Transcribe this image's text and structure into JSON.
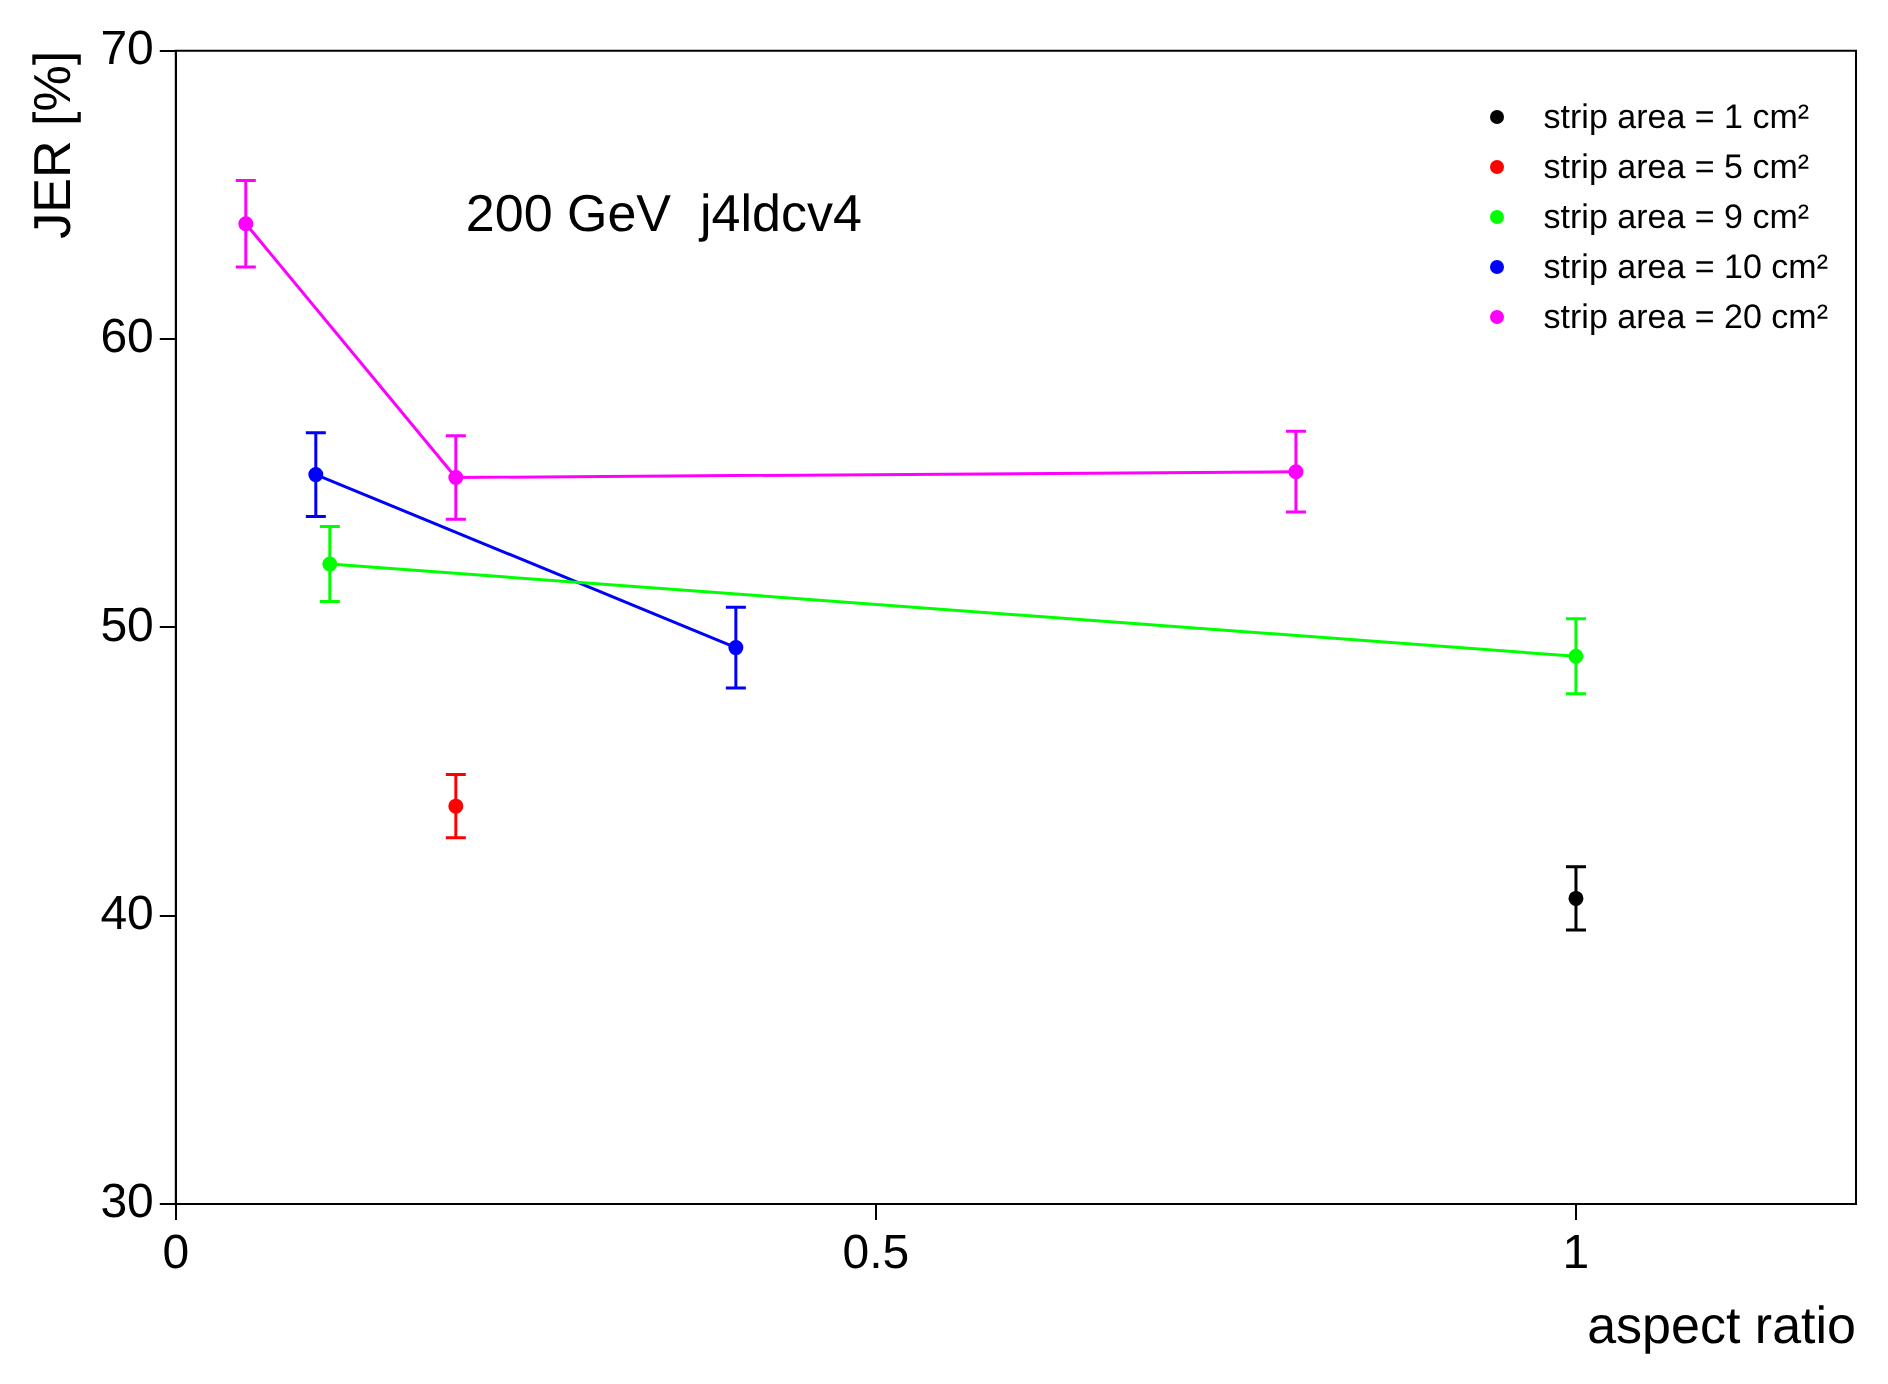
{
  "chart_data": {
    "type": "line",
    "xlabel": "aspect ratio",
    "ylabel": "JER [%]",
    "xlim": [
      0,
      1.2
    ],
    "xticks": [
      0,
      0.5,
      1
    ],
    "ylim": [
      30,
      70
    ],
    "yticks": [
      30,
      40,
      50,
      60,
      70
    ],
    "grid": false,
    "legend": "top right",
    "marker": "circle",
    "annotations": [
      "200 GeV  j4ldcv4"
    ],
    "series": [
      {
        "name": "strip area = 1 cm²",
        "type": "scatter",
        "color": "#000000",
        "x": [
          1
        ],
        "values": [
          40.6
        ],
        "errors": [
          1.1
        ]
      },
      {
        "name": "strip area = 5 cm²",
        "type": "scatter",
        "color": "#ff0000",
        "x": [
          0.2
        ],
        "values": [
          43.8
        ],
        "errors": [
          1.1
        ]
      },
      {
        "name": "strip area = 9 cm²",
        "type": "line",
        "color": "#00ff00",
        "x": [
          0.11,
          1
        ],
        "values": [
          52.2,
          49.0
        ],
        "errors": [
          1.3,
          1.3
        ]
      },
      {
        "name": "strip area = 10 cm²",
        "type": "line",
        "color": "#0000ff",
        "x": [
          0.1,
          0.4
        ],
        "values": [
          55.3,
          49.3
        ],
        "errors": [
          1.45,
          1.4
        ]
      },
      {
        "name": "strip area = 20 cm²",
        "type": "line",
        "color": "#ff00ff",
        "x": [
          0.05,
          0.2,
          0.8
        ],
        "values": [
          64.0,
          55.2,
          55.4
        ],
        "errors": [
          1.5,
          1.45,
          1.4
        ]
      }
    ]
  }
}
